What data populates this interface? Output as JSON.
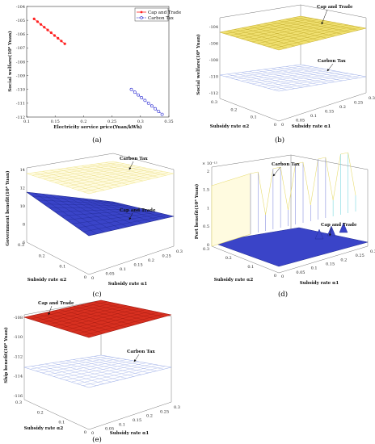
{
  "figure": {
    "panels": [
      {
        "id": "a",
        "label": "(a)"
      },
      {
        "id": "b",
        "label": "(b)"
      },
      {
        "id": "c",
        "label": "(c)"
      },
      {
        "id": "d",
        "label": "(d)"
      },
      {
        "id": "e",
        "label": "(e)"
      }
    ]
  },
  "colors": {
    "cap_and_trade": "#ff2020",
    "carbon_tax": "#2020d0",
    "surface_yellow": "#f0e070",
    "surface_blue": "#3a44c8",
    "surface_red": "#d83020",
    "mesh_light_blue": "#9fb0e8",
    "mesh_light_yellow": "#f3ea9a",
    "mesh_cyan": "#7ad8e0"
  },
  "chart_data": [
    {
      "panel": "a",
      "type": "scatter",
      "xlabel": "Electricity service price(Yuan/kWh)",
      "ylabel": "Social welfare(10⁸ Yuan)",
      "xlim": [
        0.1,
        0.35
      ],
      "ylim": [
        -112,
        -104
      ],
      "xticks": [
        "0.1",
        "0.15",
        "0.2",
        "0.25",
        "0.3",
        "0.35"
      ],
      "yticks": [
        "-104",
        "-105",
        "-106",
        "-107",
        "-108",
        "-109",
        "-110",
        "-111",
        "-112"
      ],
      "legend_position": "top-right",
      "series": [
        {
          "name": "Cap and Trade",
          "marker": "filled-circle-line",
          "x": [
            0.113,
            0.119,
            0.125,
            0.131,
            0.137,
            0.143,
            0.149,
            0.155,
            0.161,
            0.167
          ],
          "y": [
            -104.9,
            -105.1,
            -105.3,
            -105.5,
            -105.7,
            -105.9,
            -106.1,
            -106.3,
            -106.5,
            -106.7
          ]
        },
        {
          "name": "Carbon Tax",
          "marker": "open-circle-dashed",
          "x": [
            0.284,
            0.29,
            0.296,
            0.302,
            0.308,
            0.314,
            0.32,
            0.326,
            0.332,
            0.338
          ],
          "y": [
            -110.0,
            -110.2,
            -110.4,
            -110.6,
            -110.8,
            -111.0,
            -111.2,
            -111.4,
            -111.6,
            -111.8
          ]
        }
      ]
    },
    {
      "panel": "b",
      "type": "surface",
      "zlabel": "Social welfare(10⁸ Yuan)",
      "xlabel": "Subsidy rate α2",
      "ylabel": "Subsidy rate α1",
      "zticks": [
        "-104",
        "-106",
        "-108",
        "-110",
        "-112"
      ],
      "xticks": [
        "0",
        "0.1",
        "0.2",
        "0.3"
      ],
      "yticks": [
        "0",
        "0.05",
        "0.1",
        "0.15",
        "0.2",
        "0.25",
        "0.3"
      ],
      "surfaces": [
        {
          "name": "Cap and Trade",
          "z_range": [
            -106,
            -104
          ]
        },
        {
          "name": "Carbon Tax",
          "z_range": [
            -111,
            -110
          ]
        }
      ]
    },
    {
      "panel": "c",
      "type": "surface",
      "zlabel": "Government benefit(10⁸ Yuan)",
      "xlabel": "Subsidy rate α2",
      "ylabel": "Subsidy rate α1",
      "zticks": [
        "14",
        "12",
        "10",
        "8",
        "6"
      ],
      "xticks": [
        "0.3",
        "0.2",
        "0.1",
        "0"
      ],
      "yticks": [
        "0",
        "0.05",
        "0.1",
        "0.15",
        "0.2",
        "0.25",
        "0.3"
      ],
      "surfaces": [
        {
          "name": "Carbon Tax",
          "z_range": [
            13,
            14
          ]
        },
        {
          "name": "Cap and Trade",
          "z_range": [
            7,
            9
          ]
        }
      ]
    },
    {
      "panel": "d",
      "type": "surface",
      "zlabel": "Port benefit(10⁸ Yuan)",
      "scale_note": "× 10⁻¹⁵",
      "xlabel": "Subsidy rate α2",
      "ylabel": "Subsidy rate α1",
      "zticks": [
        "2",
        "1.5",
        "1",
        "0.5",
        "0"
      ],
      "xticks": [
        "0.3",
        "0.2",
        "0.1",
        "0"
      ],
      "yticks": [
        "0",
        "0.05",
        "0.1",
        "0.15",
        "0.2",
        "0.25",
        "0.3"
      ],
      "surfaces": [
        {
          "name": "Carbon Tax",
          "z_range": [
            0,
            2
          ]
        },
        {
          "name": "Cap and Trade",
          "z_range": [
            0,
            0.5
          ]
        }
      ]
    },
    {
      "panel": "e",
      "type": "surface",
      "zlabel": "Ship benefit(10⁸ Yuan)",
      "xlabel": "Subsidy rate α2",
      "ylabel": "Subsidy rate α1",
      "zticks": [
        "-108",
        "-110",
        "-112",
        "-114",
        "-116"
      ],
      "xticks": [
        "0.3",
        "0.2",
        "0.1",
        "0"
      ],
      "yticks": [
        "0",
        "0.05",
        "0.1",
        "0.15",
        "0.2",
        "0.25",
        "0.3"
      ],
      "surfaces": [
        {
          "name": "Cap and Trade",
          "z_range": [
            -110,
            -107
          ]
        },
        {
          "name": "Carbon Tax",
          "z_range": [
            -114,
            -113
          ]
        }
      ]
    }
  ]
}
